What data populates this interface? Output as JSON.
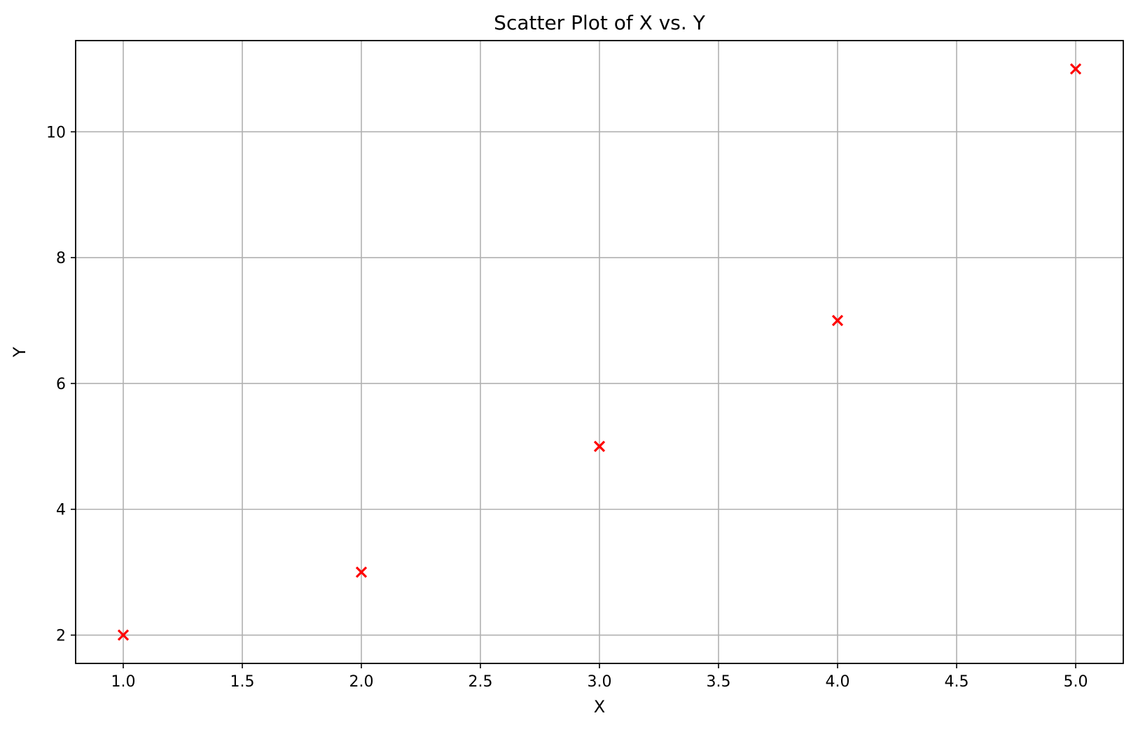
{
  "chart_data": {
    "type": "scatter",
    "title": "Scatter Plot of X vs. Y",
    "xlabel": "X",
    "ylabel": "Y",
    "xlim": [
      0.8,
      5.2
    ],
    "ylim": [
      1.55,
      11.45
    ],
    "xticks": [
      1.0,
      1.5,
      2.0,
      2.5,
      3.0,
      3.5,
      4.0,
      4.5,
      5.0
    ],
    "xtick_labels": [
      "1.0",
      "1.5",
      "2.0",
      "2.5",
      "3.0",
      "3.5",
      "4.0",
      "4.5",
      "5.0"
    ],
    "yticks": [
      2,
      4,
      6,
      8,
      10
    ],
    "ytick_labels": [
      "2",
      "4",
      "6",
      "8",
      "10"
    ],
    "grid": true,
    "marker": "x",
    "color": "#ff0000",
    "x": [
      1,
      2,
      3,
      4,
      5
    ],
    "y": [
      2,
      3,
      5,
      7,
      11
    ]
  }
}
